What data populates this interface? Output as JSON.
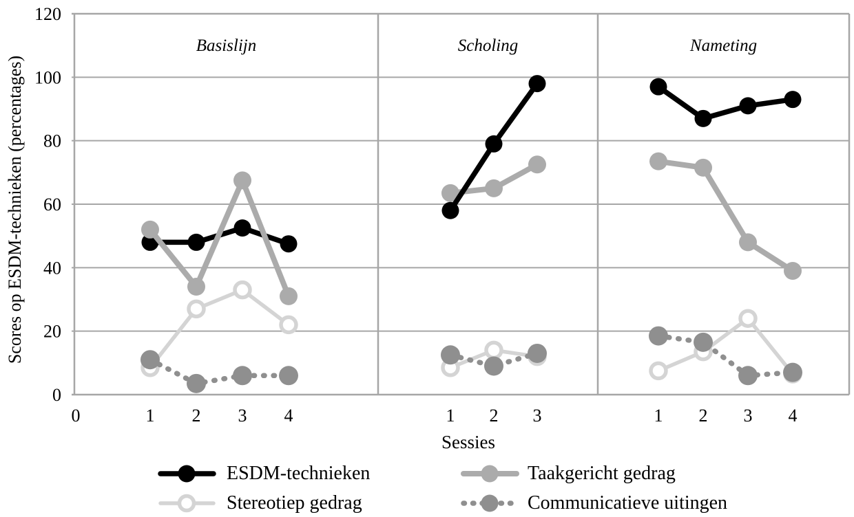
{
  "chart_data": {
    "type": "line",
    "title": "",
    "ylabel": "Scores op ESDM-technieken (percentages)",
    "xlabel": "Sessies",
    "ylim": [
      0,
      120
    ],
    "y_ticks": [
      0,
      20,
      40,
      60,
      80,
      100,
      120
    ],
    "x_origin_label": "0",
    "grid": true,
    "grid_color": "#a6a6a6",
    "legend_position": "bottom",
    "panels": [
      {
        "title": "Basislijn",
        "x_labels": [
          "1",
          "2",
          "3",
          "4"
        ]
      },
      {
        "title": "Scholing",
        "x_labels": [
          "1",
          "2",
          "3"
        ]
      },
      {
        "title": "Nameting",
        "x_labels": [
          "1",
          "2",
          "3",
          "4"
        ]
      }
    ],
    "series": [
      {
        "name": "ESDM-technieken",
        "color": "#000000",
        "marker": "filled-circle",
        "line_style": "solid",
        "values": {
          "Basislijn": [
            48,
            48,
            52.5,
            47.5
          ],
          "Scholing": [
            58,
            79,
            98
          ],
          "Nameting": [
            97,
            87,
            91,
            93
          ]
        }
      },
      {
        "name": "Taakgericht gedrag",
        "color": "#ababab",
        "marker": "filled-circle",
        "line_style": "solid",
        "values": {
          "Basislijn": [
            52,
            34,
            67.5,
            31
          ],
          "Scholing": [
            63.5,
            65,
            72.5
          ],
          "Nameting": [
            73.5,
            71.5,
            48,
            39
          ]
        }
      },
      {
        "name": "Stereotiep gedrag",
        "color": "#d4d4d4",
        "marker": "open-circle",
        "line_style": "solid",
        "values": {
          "Basislijn": [
            8.5,
            27,
            33,
            22
          ],
          "Scholing": [
            8.5,
            14,
            12
          ],
          "Nameting": [
            7.5,
            13.5,
            24,
            6.5
          ]
        }
      },
      {
        "name": "Communicatieve uitingen",
        "color": "#8f8f8f",
        "marker": "filled-circle",
        "line_style": "dotted",
        "values": {
          "Basislijn": [
            11,
            3.5,
            6,
            6
          ],
          "Scholing": [
            12.5,
            9,
            13
          ],
          "Nameting": [
            18.5,
            16.5,
            6,
            7
          ]
        }
      }
    ],
    "draw_order_by_panel": {
      "Basislijn": [
        0,
        1,
        2,
        3
      ],
      "Scholing": [
        1,
        0,
        2,
        3
      ],
      "Nameting": [
        1,
        0,
        2,
        3
      ]
    }
  }
}
